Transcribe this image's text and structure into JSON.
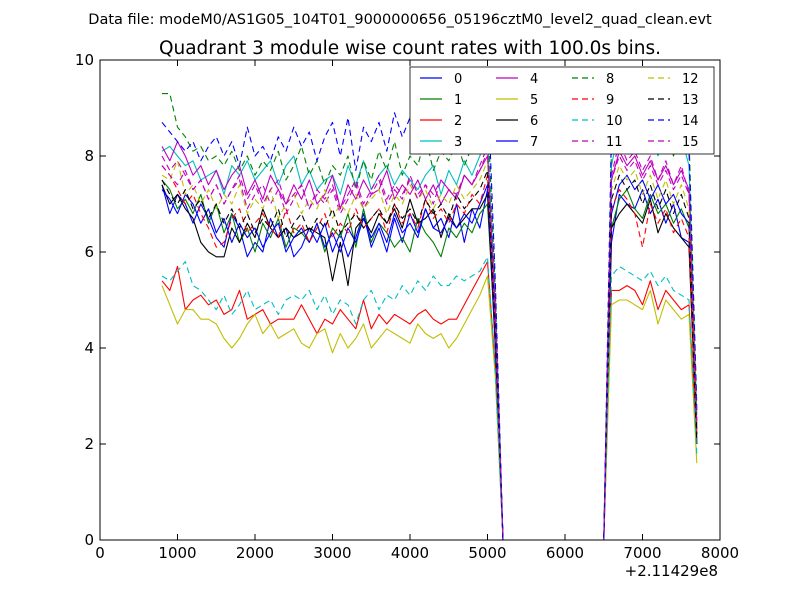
{
  "chart_data": {
    "type": "line",
    "suptitle": "Data file: modeM0/AS1G05_104T01_9000000656_05196cztM0_level2_quad_clean.evt",
    "title": "Quadrant 3 module wise count rates with 100.0s bins.",
    "xlabel": "",
    "ylabel": "",
    "x_offset_label": "+2.11429e8",
    "xlim": [
      0,
      8000
    ],
    "ylim": [
      0,
      10
    ],
    "x_ticks": [
      0,
      1000,
      2000,
      3000,
      4000,
      5000,
      6000,
      7000,
      8000
    ],
    "y_ticks": [
      0,
      2,
      4,
      6,
      8,
      10
    ],
    "grid": false,
    "legend_location": "top-right",
    "x": [
      800,
      900,
      1000,
      1100,
      1200,
      1300,
      1400,
      1500,
      1600,
      1700,
      1800,
      1900,
      2000,
      2100,
      2200,
      2300,
      2400,
      2500,
      2600,
      2700,
      2800,
      2900,
      3000,
      3100,
      3200,
      3300,
      3400,
      3500,
      3600,
      3700,
      3800,
      3900,
      4000,
      4100,
      4200,
      4300,
      4400,
      4500,
      4600,
      4700,
      4800,
      4900,
      5000,
      5100,
      5200,
      6500,
      6600,
      6700,
      6800,
      6900,
      7000,
      7100,
      7200,
      7300,
      7400,
      7500,
      7600,
      7700
    ],
    "series": [
      {
        "name": "0",
        "color": "#0000ff",
        "dash": "solid",
        "values": [
          7.4,
          6.8,
          7.2,
          7.0,
          6.6,
          7.0,
          6.7,
          6.3,
          6.1,
          6.8,
          6.5,
          5.9,
          6.2,
          6.0,
          6.7,
          6.3,
          6.5,
          5.9,
          6.1,
          6.5,
          6.2,
          6.6,
          6.0,
          6.4,
          5.9,
          6.3,
          6.8,
          6.1,
          6.5,
          6.0,
          6.7,
          6.2,
          6.8,
          6.4,
          6.9,
          6.5,
          6.7,
          6.3,
          7.0,
          6.2,
          6.9,
          6.5,
          7.3,
          4.0,
          0.0,
          0.0,
          6.2,
          7.2,
          7.0,
          6.9,
          7.3,
          6.8,
          7.1,
          6.6,
          7.0,
          6.3,
          6.2,
          2.1
        ]
      },
      {
        "name": "1",
        "color": "#008000",
        "dash": "solid",
        "values": [
          7.5,
          7.3,
          6.9,
          7.1,
          6.8,
          7.2,
          6.6,
          7.0,
          6.4,
          6.8,
          6.2,
          6.5,
          6.0,
          6.6,
          6.3,
          6.7,
          6.1,
          6.5,
          6.4,
          6.2,
          6.6,
          6.0,
          6.5,
          6.3,
          6.8,
          6.1,
          6.9,
          6.2,
          6.6,
          6.4,
          6.1,
          6.3,
          6.0,
          6.7,
          6.4,
          6.2,
          5.9,
          6.5,
          6.3,
          6.6,
          6.4,
          6.8,
          7.0,
          4.2,
          0.0,
          0.0,
          6.5,
          7.1,
          7.3,
          6.9,
          6.7,
          7.2,
          6.8,
          7.0,
          6.6,
          6.9,
          6.5,
          2.2
        ]
      },
      {
        "name": "2",
        "color": "#ff0000",
        "dash": "solid",
        "values": [
          5.4,
          5.2,
          5.7,
          4.8,
          5.0,
          5.1,
          4.9,
          5.0,
          4.7,
          4.8,
          5.2,
          4.6,
          4.7,
          4.8,
          4.5,
          4.6,
          4.6,
          4.6,
          4.9,
          4.6,
          4.3,
          4.6,
          4.5,
          4.8,
          4.6,
          4.4,
          5.0,
          4.4,
          4.7,
          4.5,
          4.7,
          4.6,
          4.5,
          4.7,
          4.8,
          4.6,
          4.5,
          4.6,
          4.6,
          4.9,
          5.2,
          5.5,
          5.8,
          3.6,
          0.0,
          0.0,
          5.2,
          5.2,
          5.3,
          5.2,
          4.9,
          5.4,
          4.8,
          5.2,
          5.0,
          4.8,
          4.9,
          2.0
        ]
      },
      {
        "name": "3",
        "color": "#00bfbf",
        "dash": "solid",
        "values": [
          8.1,
          8.2,
          8.0,
          7.8,
          7.9,
          7.5,
          7.6,
          7.7,
          7.2,
          7.8,
          7.6,
          7.9,
          7.5,
          7.7,
          7.9,
          7.4,
          7.8,
          8.0,
          7.4,
          7.7,
          7.3,
          7.5,
          7.6,
          7.2,
          7.8,
          7.4,
          7.9,
          7.3,
          7.6,
          7.8,
          7.4,
          7.7,
          7.5,
          7.3,
          7.6,
          7.8,
          7.2,
          7.7,
          7.4,
          7.9,
          7.6,
          8.0,
          8.4,
          4.9,
          0.0,
          0.0,
          7.8,
          8.6,
          8.3,
          8.7,
          8.2,
          8.5,
          8.0,
          8.6,
          8.1,
          8.4,
          7.8,
          2.6
        ]
      },
      {
        "name": "4",
        "color": "#bf00bf",
        "dash": "solid",
        "values": [
          8.2,
          7.9,
          8.3,
          8.0,
          7.6,
          7.8,
          7.4,
          7.7,
          7.3,
          7.6,
          7.8,
          7.2,
          7.5,
          7.1,
          7.6,
          7.3,
          7.0,
          7.4,
          7.1,
          7.5,
          7.0,
          7.2,
          7.6,
          6.9,
          7.4,
          7.1,
          7.5,
          7.2,
          7.3,
          7.7,
          7.1,
          7.4,
          7.2,
          7.5,
          7.1,
          7.4,
          7.0,
          7.3,
          7.1,
          7.6,
          7.4,
          7.7,
          8.0,
          4.7,
          0.0,
          0.0,
          7.5,
          8.1,
          7.8,
          8.0,
          7.6,
          7.9,
          7.5,
          7.8,
          7.4,
          7.7,
          7.3,
          2.4
        ]
      },
      {
        "name": "5",
        "color": "#bfbf00",
        "dash": "solid",
        "values": [
          5.3,
          4.9,
          4.5,
          4.8,
          4.8,
          4.6,
          4.6,
          4.5,
          4.2,
          4.0,
          4.2,
          4.5,
          4.7,
          4.3,
          4.5,
          4.2,
          4.3,
          4.4,
          4.1,
          4.0,
          4.3,
          4.4,
          3.9,
          4.3,
          4.0,
          4.2,
          4.5,
          4.0,
          4.2,
          4.4,
          4.3,
          4.2,
          4.1,
          4.5,
          4.3,
          4.2,
          4.3,
          4.0,
          4.2,
          4.5,
          4.8,
          5.1,
          5.5,
          3.4,
          0.0,
          0.0,
          4.9,
          5.0,
          5.0,
          4.9,
          4.8,
          5.2,
          4.5,
          5.0,
          4.8,
          4.6,
          4.7,
          1.6
        ]
      },
      {
        "name": "6",
        "color": "#000000",
        "dash": "solid",
        "values": [
          7.4,
          7.0,
          7.2,
          6.9,
          6.7,
          6.2,
          6.0,
          5.9,
          5.9,
          6.5,
          6.2,
          6.6,
          6.3,
          6.9,
          6.5,
          6.3,
          6.5,
          6.3,
          6.4,
          6.5,
          6.4,
          6.3,
          5.4,
          6.2,
          5.3,
          6.5,
          6.7,
          6.4,
          6.8,
          6.6,
          6.9,
          6.5,
          7.1,
          6.6,
          6.7,
          6.9,
          6.3,
          6.8,
          6.5,
          6.7,
          6.9,
          6.9,
          7.2,
          4.1,
          0.0,
          0.0,
          6.5,
          6.8,
          7.0,
          6.8,
          6.6,
          7.1,
          6.4,
          6.8,
          6.5,
          6.3,
          6.1,
          2.0
        ]
      },
      {
        "name": "7",
        "color": "#0000ff",
        "dash": "solid",
        "values": [
          7.3,
          7.1,
          6.8,
          7.2,
          7.0,
          6.6,
          6.9,
          6.4,
          6.7,
          6.2,
          6.6,
          6.3,
          6.5,
          6.1,
          6.4,
          6.6,
          6.0,
          6.3,
          6.5,
          6.2,
          6.6,
          6.1,
          6.4,
          6.0,
          6.5,
          6.2,
          6.7,
          6.3,
          6.6,
          6.2,
          6.8,
          6.4,
          6.6,
          6.3,
          6.9,
          6.5,
          6.4,
          6.7,
          6.5,
          6.8,
          6.6,
          7.0,
          7.4,
          4.3,
          0.0,
          0.0,
          6.8,
          7.4,
          7.6,
          7.3,
          7.5,
          7.1,
          7.4,
          7.0,
          7.2,
          6.8,
          6.6,
          2.3
        ]
      },
      {
        "name": "8",
        "color": "#008000",
        "dash": "dashed",
        "values": [
          9.3,
          9.3,
          8.6,
          8.4,
          8.1,
          8.2,
          7.9,
          8.0,
          7.8,
          8.1,
          7.7,
          8.0,
          7.6,
          7.9,
          7.7,
          8.1,
          7.5,
          7.8,
          8.2,
          7.6,
          7.9,
          7.4,
          7.8,
          7.6,
          8.0,
          7.3,
          7.9,
          7.5,
          8.1,
          7.7,
          8.3,
          7.6,
          8.0,
          7.8,
          8.4,
          7.7,
          8.1,
          7.9,
          8.3,
          7.8,
          8.2,
          8.5,
          9.0,
          5.2,
          0.0,
          0.0,
          8.2,
          8.8,
          8.5,
          8.9,
          8.3,
          8.7,
          8.2,
          8.6,
          8.0,
          8.8,
          8.4,
          2.8
        ]
      },
      {
        "name": "9",
        "color": "#ff0000",
        "dash": "dashed",
        "values": [
          7.8,
          7.6,
          7.3,
          7.0,
          7.2,
          6.8,
          6.5,
          6.1,
          6.2,
          6.7,
          6.9,
          6.4,
          6.6,
          6.8,
          6.5,
          6.3,
          6.9,
          6.4,
          6.6,
          6.2,
          6.5,
          6.8,
          6.3,
          6.6,
          6.4,
          6.9,
          6.5,
          6.7,
          6.9,
          6.4,
          7.0,
          6.6,
          6.8,
          6.5,
          7.1,
          6.7,
          6.9,
          6.6,
          7.0,
          6.8,
          7.2,
          7.0,
          7.6,
          4.4,
          0.0,
          0.0,
          6.9,
          7.3,
          7.1,
          6.8,
          6.1,
          7.0,
          6.6,
          6.9,
          6.4,
          6.7,
          6.3,
          2.1
        ]
      },
      {
        "name": "10",
        "color": "#00bfbf",
        "dash": "dashed",
        "values": [
          5.5,
          5.4,
          5.6,
          5.8,
          5.3,
          5.2,
          5.0,
          4.8,
          5.1,
          4.7,
          4.9,
          5.2,
          4.8,
          4.9,
          5.0,
          4.7,
          5.0,
          5.1,
          5.0,
          5.2,
          4.8,
          5.1,
          4.7,
          5.0,
          4.9,
          4.5,
          5.0,
          5.2,
          4.8,
          5.1,
          5.0,
          5.3,
          5.1,
          5.4,
          5.2,
          5.5,
          5.3,
          5.3,
          5.5,
          5.4,
          5.5,
          5.6,
          5.9,
          3.5,
          0.0,
          0.0,
          5.5,
          5.7,
          5.6,
          5.5,
          5.4,
          5.6,
          5.3,
          5.5,
          5.2,
          5.1,
          5.0,
          1.8
        ]
      },
      {
        "name": "11",
        "color": "#bf00bf",
        "dash": "dashed",
        "values": [
          8.0,
          7.7,
          7.9,
          7.6,
          7.3,
          7.5,
          7.1,
          7.4,
          7.0,
          7.3,
          7.5,
          6.9,
          7.2,
          7.4,
          7.0,
          7.3,
          6.8,
          7.1,
          7.4,
          6.9,
          7.2,
          7.0,
          7.3,
          6.8,
          7.1,
          7.4,
          6.9,
          7.2,
          7.5,
          7.0,
          7.3,
          7.1,
          7.6,
          7.2,
          7.4,
          7.0,
          7.5,
          7.3,
          7.1,
          7.6,
          7.4,
          7.8,
          8.2,
          4.8,
          0.0,
          0.0,
          7.6,
          8.3,
          7.9,
          8.1,
          7.7,
          8.0,
          7.5,
          7.9,
          7.4,
          7.8,
          7.2,
          2.5
        ]
      },
      {
        "name": "12",
        "color": "#bfbf00",
        "dash": "dashed",
        "values": [
          7.6,
          7.5,
          7.9,
          7.2,
          7.4,
          7.0,
          7.3,
          6.9,
          7.2,
          7.0,
          7.4,
          6.8,
          7.1,
          6.9,
          7.3,
          6.7,
          7.0,
          7.2,
          6.8,
          7.1,
          6.9,
          7.3,
          6.7,
          7.0,
          6.8,
          7.2,
          6.9,
          7.1,
          7.3,
          6.8,
          7.2,
          7.0,
          7.4,
          7.1,
          7.3,
          6.9,
          7.2,
          7.0,
          7.4,
          7.1,
          7.3,
          7.5,
          7.9,
          4.6,
          0.0,
          0.0,
          7.3,
          7.8,
          7.5,
          7.7,
          7.2,
          7.6,
          7.1,
          7.5,
          7.0,
          7.4,
          6.9,
          2.3
        ]
      },
      {
        "name": "13",
        "color": "#000000",
        "dash": "dashed",
        "values": [
          7.5,
          7.2,
          7.0,
          7.3,
          6.9,
          7.1,
          6.7,
          7.0,
          6.6,
          6.9,
          6.5,
          6.8,
          6.4,
          6.7,
          6.5,
          6.9,
          6.3,
          6.6,
          6.8,
          6.4,
          6.7,
          6.5,
          6.9,
          6.4,
          6.6,
          6.8,
          6.5,
          6.7,
          6.9,
          6.6,
          7.0,
          6.7,
          6.9,
          6.6,
          7.1,
          6.8,
          7.0,
          6.7,
          7.2,
          6.9,
          7.1,
          7.3,
          7.7,
          4.5,
          0.0,
          0.0,
          7.1,
          7.6,
          7.3,
          7.5,
          7.0,
          7.4,
          6.9,
          7.3,
          6.8,
          7.2,
          6.7,
          2.2
        ]
      },
      {
        "name": "14",
        "color": "#0000ff",
        "dash": "dashed",
        "values": [
          8.7,
          8.5,
          8.3,
          8.1,
          8.3,
          7.9,
          8.2,
          8.4,
          8.0,
          8.3,
          7.8,
          8.6,
          8.0,
          8.2,
          7.9,
          8.4,
          8.1,
          8.6,
          8.2,
          8.5,
          7.9,
          8.4,
          8.7,
          8.0,
          8.8,
          7.7,
          8.6,
          8.3,
          8.7,
          8.1,
          8.9,
          8.4,
          8.8,
          8.2,
          8.6,
          8.3,
          8.9,
          8.5,
          8.7,
          8.4,
          8.8,
          9.0,
          9.6,
          5.4,
          0.0,
          0.0,
          8.6,
          9.3,
          8.8,
          9.1,
          8.5,
          8.9,
          8.3,
          8.8,
          8.2,
          8.7,
          8.1,
          2.7
        ]
      },
      {
        "name": "15",
        "color": "#bf00bf",
        "dash": "dashed",
        "values": [
          7.8,
          7.6,
          7.4,
          7.7,
          7.3,
          7.5,
          7.1,
          7.4,
          7.0,
          7.3,
          7.6,
          7.1,
          7.4,
          7.0,
          7.3,
          7.5,
          7.0,
          7.2,
          7.4,
          6.9,
          7.3,
          7.1,
          7.4,
          6.9,
          7.2,
          7.5,
          7.0,
          7.3,
          7.6,
          7.1,
          7.4,
          7.2,
          7.5,
          7.1,
          7.4,
          7.2,
          7.5,
          7.3,
          7.2,
          7.6,
          7.4,
          7.7,
          8.1,
          4.7,
          0.0,
          0.0,
          7.5,
          8.0,
          7.7,
          7.9,
          7.5,
          7.8,
          7.4,
          7.7,
          7.3,
          7.6,
          7.2,
          2.4
        ]
      }
    ]
  }
}
